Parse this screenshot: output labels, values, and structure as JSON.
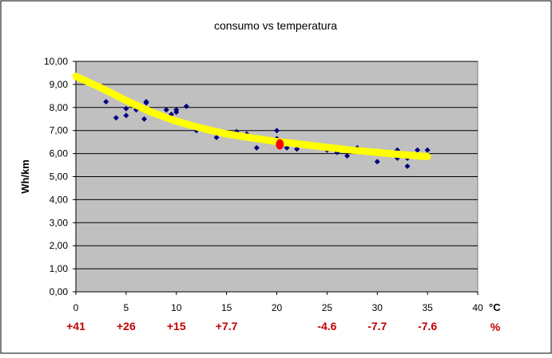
{
  "chart_data": {
    "type": "scatter",
    "title": "consumo vs temperatura",
    "xlabel": "°C",
    "ylabel": "Wh/km",
    "xlim": [
      0,
      40
    ],
    "ylim": [
      0,
      10
    ],
    "x_ticks": [
      "0",
      "5",
      "10",
      "15",
      "20",
      "25",
      "30",
      "35",
      "40"
    ],
    "y_ticks": [
      "0,00",
      "1,00",
      "2,00",
      "3,00",
      "4,00",
      "5,00",
      "6,00",
      "7,00",
      "8,00",
      "9,00",
      "10,00"
    ],
    "secondary_x_labels": [
      {
        "x": 0,
        "label": "+41"
      },
      {
        "x": 5,
        "label": "+26"
      },
      {
        "x": 10,
        "label": "+15"
      },
      {
        "x": 15,
        "label": "+7.7"
      },
      {
        "x": 25,
        "label": "-4.6"
      },
      {
        "x": 30,
        "label": "-7.7"
      },
      {
        "x": 35,
        "label": "-7.6"
      }
    ],
    "secondary_unit": "%",
    "grid": true,
    "legend": "none",
    "points": [
      {
        "x": 3,
        "y": 8.25
      },
      {
        "x": 4,
        "y": 7.55
      },
      {
        "x": 5,
        "y": 7.95
      },
      {
        "x": 5,
        "y": 7.65
      },
      {
        "x": 6,
        "y": 7.9
      },
      {
        "x": 6.8,
        "y": 7.5
      },
      {
        "x": 7,
        "y": 8.2
      },
      {
        "x": 7,
        "y": 8.25
      },
      {
        "x": 8,
        "y": 7.75
      },
      {
        "x": 9,
        "y": 7.9
      },
      {
        "x": 9.5,
        "y": 7.7
      },
      {
        "x": 10,
        "y": 7.9
      },
      {
        "x": 10,
        "y": 7.8
      },
      {
        "x": 11,
        "y": 8.05
      },
      {
        "x": 12,
        "y": 7.0
      },
      {
        "x": 14,
        "y": 7.0
      },
      {
        "x": 14,
        "y": 6.7
      },
      {
        "x": 16,
        "y": 6.95
      },
      {
        "x": 17,
        "y": 6.85
      },
      {
        "x": 18,
        "y": 6.25
      },
      {
        "x": 19,
        "y": 6.6
      },
      {
        "x": 20,
        "y": 7.0
      },
      {
        "x": 20,
        "y": 6.65
      },
      {
        "x": 21,
        "y": 6.25
      },
      {
        "x": 22,
        "y": 6.2
      },
      {
        "x": 25,
        "y": 6.15
      },
      {
        "x": 26,
        "y": 6.05
      },
      {
        "x": 27,
        "y": 5.9
      },
      {
        "x": 28,
        "y": 6.25
      },
      {
        "x": 29,
        "y": 6.1
      },
      {
        "x": 30,
        "y": 5.65
      },
      {
        "x": 31,
        "y": 6.05
      },
      {
        "x": 32,
        "y": 6.15
      },
      {
        "x": 32,
        "y": 5.8
      },
      {
        "x": 33,
        "y": 5.8
      },
      {
        "x": 33,
        "y": 5.45
      },
      {
        "x": 34,
        "y": 6.15
      },
      {
        "x": 35,
        "y": 6.15
      }
    ],
    "highlight_point": {
      "x": 20.3,
      "y": 6.4
    },
    "trendline": [
      {
        "x": 0,
        "y": 9.35
      },
      {
        "x": 2.5,
        "y": 8.85
      },
      {
        "x": 5,
        "y": 8.3
      },
      {
        "x": 7.5,
        "y": 7.8
      },
      {
        "x": 10,
        "y": 7.4
      },
      {
        "x": 12.5,
        "y": 7.1
      },
      {
        "x": 15,
        "y": 6.85
      },
      {
        "x": 17.5,
        "y": 6.68
      },
      {
        "x": 20,
        "y": 6.52
      },
      {
        "x": 22.5,
        "y": 6.4
      },
      {
        "x": 25,
        "y": 6.27
      },
      {
        "x": 27.5,
        "y": 6.15
      },
      {
        "x": 30,
        "y": 6.05
      },
      {
        "x": 32.5,
        "y": 5.95
      },
      {
        "x": 35,
        "y": 5.87
      }
    ],
    "colors": {
      "plot_bg": "#c0c0c0",
      "points": "#000080",
      "trendline": "#ffff00",
      "highlight": "#ff0000",
      "secondary_labels": "#c00000"
    }
  }
}
